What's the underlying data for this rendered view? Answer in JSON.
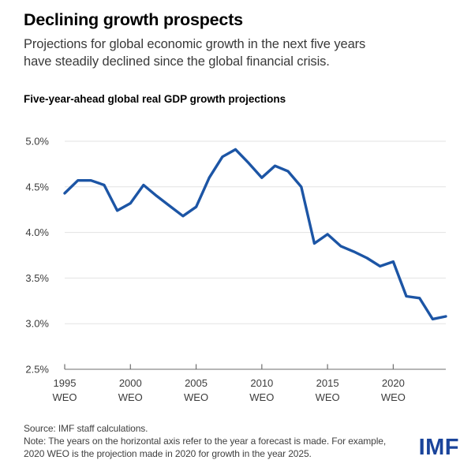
{
  "header": {
    "title": "Declining growth prospects",
    "subtitle_line1": "Projections for global economic growth in the next five years",
    "subtitle_line2": "have steadily declined since the global financial crisis."
  },
  "chart_data": {
    "type": "line",
    "title": "Five-year-ahead global real GDP growth projections",
    "x": [
      1995,
      1996,
      1997,
      1998,
      1999,
      2000,
      2001,
      2002,
      2003,
      2004,
      2005,
      2006,
      2007,
      2008,
      2009,
      2010,
      2011,
      2012,
      2013,
      2014,
      2015,
      2016,
      2017,
      2018,
      2019,
      2020,
      2021,
      2022,
      2023,
      2024
    ],
    "series": [
      {
        "name": "Five-year-ahead global real GDP growth projection (%)",
        "values": [
          4.43,
          4.57,
          4.57,
          4.52,
          4.24,
          4.32,
          4.52,
          4.4,
          4.29,
          4.18,
          4.28,
          4.6,
          4.83,
          4.91,
          4.76,
          4.6,
          4.73,
          4.67,
          4.5,
          3.88,
          3.98,
          3.85,
          3.79,
          3.72,
          3.63,
          3.68,
          3.3,
          3.28,
          3.05,
          3.08
        ]
      }
    ],
    "xlabel": "",
    "ylabel": "",
    "ylim": [
      2.5,
      5.0
    ],
    "ytick_values": [
      5.0,
      4.5,
      4.0,
      3.5,
      3.0,
      2.5
    ],
    "ytick_labels": [
      "5.0%",
      "4.5%",
      "4.0%",
      "3.5%",
      "3.0%",
      "2.5%"
    ],
    "xtick_years": [
      1995,
      2000,
      2005,
      2010,
      2015,
      2020
    ],
    "xtick_sublabel": "WEO",
    "grid": "horizontal gridlines at labeled y ticks except baseline",
    "legend": "none"
  },
  "footer": {
    "source": "Source: IMF staff calculations.",
    "note_line1": "Note: The years on the horizontal axis refer to the year a forecast is made. For example,",
    "note_line2": "2020 WEO is the projection made in 2020 for growth in the year 2025.",
    "logo_text": "IMF"
  },
  "colors": {
    "line": "#1c55a5",
    "gridline": "#e3e3e3",
    "axis": "#8a8a8a",
    "tick": "#6e6e6e",
    "axis_label": "#3c3c3c",
    "logo_blue": "#1a449b"
  }
}
